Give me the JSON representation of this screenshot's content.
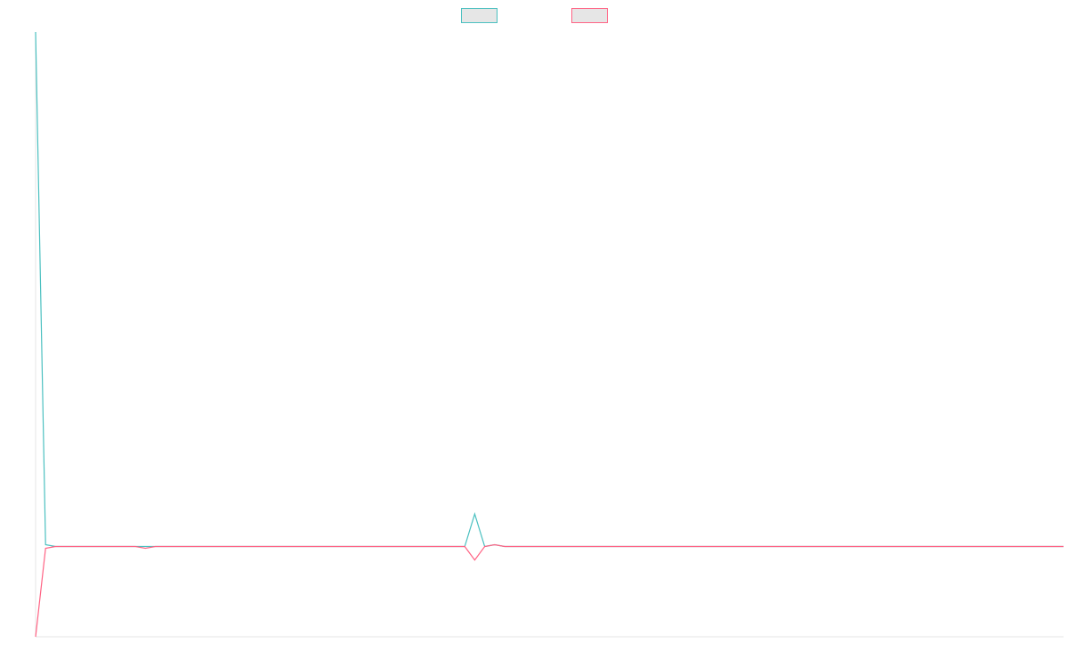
{
  "chart_data": {
    "type": "line",
    "title": "",
    "xlabel": "",
    "ylabel": "",
    "grid": false,
    "legend_position": "top-center",
    "x": [
      0,
      1,
      2,
      3,
      4,
      5,
      6,
      7,
      8,
      9,
      10,
      11,
      12,
      13,
      14,
      15,
      16,
      17,
      18,
      19,
      20,
      21,
      22,
      23,
      24,
      25,
      26,
      27,
      28,
      29,
      30,
      31,
      32,
      33,
      34,
      35,
      36,
      37,
      38,
      39,
      40,
      41,
      42,
      43,
      44,
      45,
      46,
      47,
      48,
      49,
      50,
      51,
      52,
      53,
      54,
      55,
      56,
      57,
      58,
      59,
      60,
      61,
      62,
      63,
      64,
      65,
      66,
      67,
      68,
      69,
      70,
      71,
      72,
      73,
      74,
      75,
      76,
      77,
      78,
      79,
      80,
      81,
      82,
      83,
      84,
      85,
      86,
      87,
      88,
      89,
      90,
      91,
      92,
      93,
      94,
      95,
      96,
      97,
      98,
      99,
      100,
      101,
      102,
      103
    ],
    "xlim": [
      0,
      103
    ],
    "ylim": [
      -100,
      570
    ],
    "series": [
      {
        "color": "#4BC0C0",
        "fill": "#E6E6E6",
        "values": [
          570,
          2,
          0,
          0,
          0,
          0,
          0,
          0,
          0,
          0,
          0,
          0,
          0,
          0,
          0,
          0,
          0,
          0,
          0,
          0,
          0,
          0,
          0,
          0,
          0,
          0,
          0,
          0,
          0,
          0,
          0,
          0,
          0,
          0,
          0,
          0,
          0,
          0,
          0,
          0,
          0,
          0,
          0,
          0,
          36,
          0,
          2,
          0,
          0,
          0,
          0,
          0,
          0,
          0,
          0,
          0,
          0,
          0,
          0,
          0,
          0,
          0,
          0,
          0,
          0,
          0,
          0,
          0,
          0,
          0,
          0,
          0,
          0,
          0,
          0,
          0,
          0,
          0,
          0,
          0,
          0,
          0,
          0,
          0,
          0,
          0,
          0,
          0,
          0,
          0,
          0,
          0,
          0,
          0,
          0,
          0,
          0,
          0,
          0,
          0,
          0,
          0,
          0,
          0
        ]
      },
      {
        "color": "#FF6384",
        "fill": "#E6E6E6",
        "values": [
          -100,
          -2,
          0,
          0,
          0,
          0,
          0,
          0,
          0,
          0,
          0,
          -2,
          0,
          0,
          0,
          0,
          0,
          0,
          0,
          0,
          0,
          0,
          0,
          0,
          0,
          0,
          0,
          0,
          0,
          0,
          0,
          0,
          0,
          0,
          0,
          0,
          0,
          0,
          0,
          0,
          0,
          0,
          0,
          0,
          -15,
          0,
          2,
          0,
          0,
          0,
          0,
          0,
          0,
          0,
          0,
          0,
          0,
          0,
          0,
          0,
          0,
          0,
          0,
          0,
          0,
          0,
          0,
          0,
          0,
          0,
          0,
          0,
          0,
          0,
          0,
          0,
          0,
          0,
          0,
          0,
          0,
          0,
          0,
          0,
          0,
          0,
          0,
          0,
          0,
          0,
          0,
          0,
          0,
          0,
          0,
          0,
          0,
          0,
          0,
          0,
          0,
          0,
          0,
          0
        ]
      }
    ]
  }
}
